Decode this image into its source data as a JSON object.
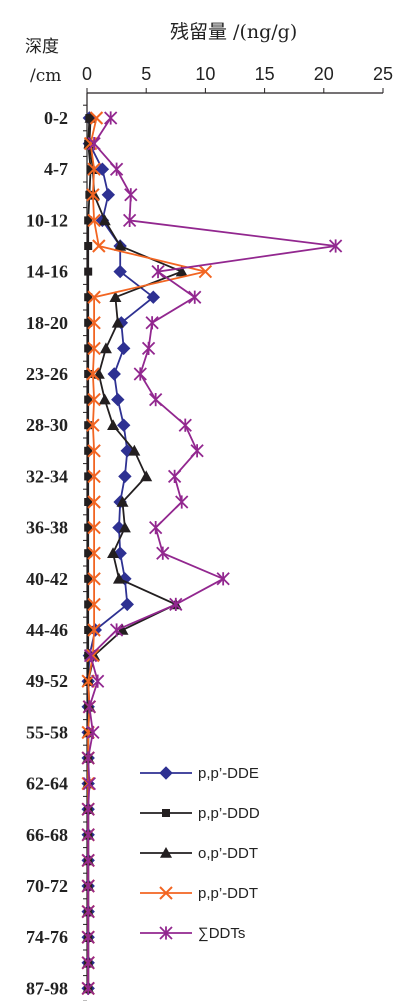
{
  "chart_data": {
    "type": "line",
    "title": "残留量 /(ng/g)",
    "ylabel_line1": "深度",
    "ylabel_line2": "/cm",
    "xlim": [
      0,
      25
    ],
    "xticks": [
      0,
      5,
      10,
      15,
      20,
      25
    ],
    "x_axis_position": "top",
    "y_tick_labels": [
      "0-2",
      "4-7",
      "10-12",
      "14-16",
      "18-20",
      "23-26",
      "28-30",
      "32-34",
      "36-38",
      "40-42",
      "44-46",
      "49-52",
      "55-58",
      "62-64",
      "66-68",
      "70-72",
      "74-76",
      "87-98"
    ],
    "legend_position": "bottom-right",
    "series": [
      {
        "name": "p,p’-DDE",
        "color": "#2e3192",
        "marker": "diamond",
        "values": [
          0.2,
          0.2,
          1.3,
          1.8,
          1.3,
          2.8,
          2.8,
          5.6,
          2.9,
          3.1,
          2.3,
          2.6,
          3.1,
          3.4,
          3.2,
          2.8,
          2.7,
          2.8,
          3.2,
          3.4,
          0.7,
          0.2,
          0.1,
          0.1,
          0.1,
          0.1,
          0.1,
          0.1,
          0.1,
          0.1,
          0.1,
          0.1,
          0.1,
          0.1,
          0.1
        ]
      },
      {
        "name": "p,p’-DDD",
        "color": "#231f20",
        "marker": "square",
        "values": [
          0.2,
          0.1,
          0.3,
          0.2,
          0.1,
          0.1,
          0.1,
          0.1,
          0.1,
          0.1,
          0.1,
          0.1,
          0.1,
          0.1,
          0.1,
          0.1,
          0.1,
          0.1,
          0.1,
          0.1,
          0.1,
          0.1,
          0.1,
          0.1,
          0.1,
          0.1,
          0.1,
          0.1,
          0.1,
          0.1,
          0.1,
          0.1,
          0.1,
          0.1,
          0.1
        ]
      },
      {
        "name": "o,p’-DDT",
        "color": "#231f20",
        "marker": "triangle",
        "values": [
          0.3,
          0.2,
          0.5,
          0.6,
          1.5,
          2.8,
          8.0,
          2.4,
          2.6,
          1.6,
          1.0,
          1.5,
          2.2,
          4.0,
          5.0,
          3.0,
          3.2,
          2.2,
          2.7,
          7.5,
          3.0,
          0.6,
          0.1,
          0.2,
          0.1,
          0.1,
          0.1,
          0.1,
          0.1,
          0.1,
          0.1,
          0.1,
          0.1,
          0.1,
          0.1
        ]
      },
      {
        "name": "p,p’-DDT",
        "color": "#f26522",
        "marker": "x",
        "values": [
          0.8,
          0.3,
          0.6,
          0.5,
          0.6,
          1.0,
          10.0,
          0.6,
          0.6,
          0.6,
          0.5,
          0.6,
          0.5,
          0.6,
          0.6,
          0.6,
          0.6,
          0.6,
          0.6,
          0.6,
          0.6,
          0.5,
          0.1,
          0.2,
          0.1,
          0.1,
          0.1,
          0.1,
          0.1,
          0.1,
          0.1,
          0.1,
          0.1,
          0.1,
          0.1
        ]
      },
      {
        "name": "∑DDTs",
        "color": "#92278f",
        "marker": "star",
        "values": [
          2.0,
          0.6,
          2.5,
          3.7,
          3.6,
          21.0,
          6.0,
          9.1,
          5.5,
          5.2,
          4.5,
          5.8,
          8.3,
          9.3,
          7.4,
          8.0,
          5.8,
          6.4,
          11.5,
          7.5,
          2.5,
          0.3,
          0.9,
          0.2,
          0.5,
          0.1,
          0.2,
          0.1,
          0.1,
          0.1,
          0.1,
          0.1,
          0.1,
          0.1,
          0.1
        ]
      }
    ]
  }
}
